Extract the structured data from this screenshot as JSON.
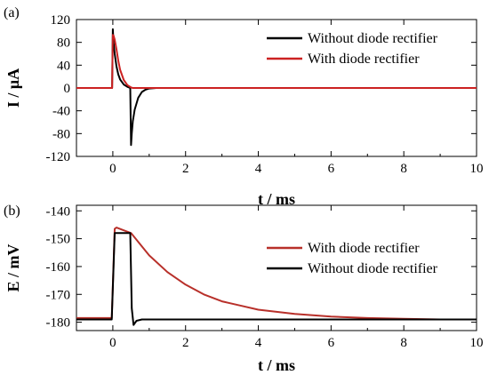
{
  "chart_data": [
    {
      "type": "line",
      "panel_label": "(a)",
      "xlabel": "t / ms",
      "ylabel": "I / μA",
      "xlim": [
        -1,
        10
      ],
      "ylim": [
        -120,
        120
      ],
      "x_ticks": [
        0,
        2,
        4,
        6,
        8,
        10
      ],
      "x_tick_labels": [
        "0",
        "2",
        "4",
        "6",
        "8",
        "10"
      ],
      "y_ticks": [
        -120,
        -80,
        -40,
        0,
        40,
        80,
        120
      ],
      "y_tick_labels": [
        "-120",
        "-80",
        "-40",
        "0",
        "40",
        "80",
        "120"
      ],
      "legend_position": "top-right",
      "grid": false,
      "series": [
        {
          "name": "Without diode rectifier",
          "color": "#000000",
          "x": [
            -1,
            -0.02,
            0,
            0.02,
            0.05,
            0.1,
            0.15,
            0.2,
            0.3,
            0.4,
            0.48,
            0.5,
            0.52,
            0.55,
            0.6,
            0.7,
            0.8,
            0.9,
            1.0,
            1.2,
            2,
            4,
            6,
            8,
            10
          ],
          "y": [
            0,
            0,
            103,
            80,
            60,
            38,
            24,
            15,
            6,
            2,
            0,
            -100,
            -80,
            -58,
            -38,
            -17,
            -7,
            -3,
            -1,
            0,
            0,
            0,
            0,
            0,
            0
          ]
        },
        {
          "name": "With diode rectifier",
          "color": "#cc2222",
          "x": [
            -1,
            -0.02,
            0,
            0.02,
            0.05,
            0.1,
            0.15,
            0.2,
            0.3,
            0.4,
            0.5,
            0.55,
            0.7,
            1,
            2,
            4,
            6,
            8,
            10
          ],
          "y": [
            0,
            0,
            93,
            92,
            85,
            68,
            48,
            32,
            14,
            5,
            1,
            0,
            0,
            0,
            0,
            0,
            0,
            0,
            0
          ]
        }
      ]
    },
    {
      "type": "line",
      "panel_label": "(b)",
      "xlabel": "t / ms",
      "ylabel": "E / mV",
      "xlim": [
        -1,
        10
      ],
      "ylim": [
        -183,
        -138
      ],
      "x_ticks": [
        0,
        2,
        4,
        6,
        8,
        10
      ],
      "x_tick_labels": [
        "0",
        "2",
        "4",
        "6",
        "8",
        "10"
      ],
      "y_ticks": [
        -180,
        -170,
        -160,
        -150,
        -140
      ],
      "y_tick_labels": [
        "-180",
        "-170",
        "-160",
        "-150",
        "-140"
      ],
      "legend_position": "right",
      "grid": false,
      "series": [
        {
          "name": "With diode rectifier",
          "color": "#b8302a",
          "x": [
            -1,
            -0.03,
            0.05,
            0.1,
            0.3,
            0.5,
            1,
            1.5,
            2,
            2.5,
            3,
            3.5,
            4,
            5,
            6,
            7,
            8,
            9,
            10
          ],
          "y": [
            -178.5,
            -178.5,
            -146.5,
            -146,
            -147,
            -148,
            -156,
            -162,
            -166.5,
            -170,
            -172.5,
            -174,
            -175.5,
            -177,
            -178,
            -178.5,
            -178.8,
            -179,
            -179
          ]
        },
        {
          "name": "Without diode rectifier",
          "color": "#000000",
          "x": [
            -1,
            -0.03,
            0.05,
            0.2,
            0.48,
            0.52,
            0.57,
            0.65,
            0.8,
            1,
            2,
            4,
            6,
            8,
            10
          ],
          "y": [
            -179,
            -179,
            -148,
            -148,
            -148,
            -175,
            -181,
            -179.5,
            -179,
            -179,
            -179,
            -179,
            -179,
            -179,
            -179
          ]
        }
      ]
    }
  ]
}
